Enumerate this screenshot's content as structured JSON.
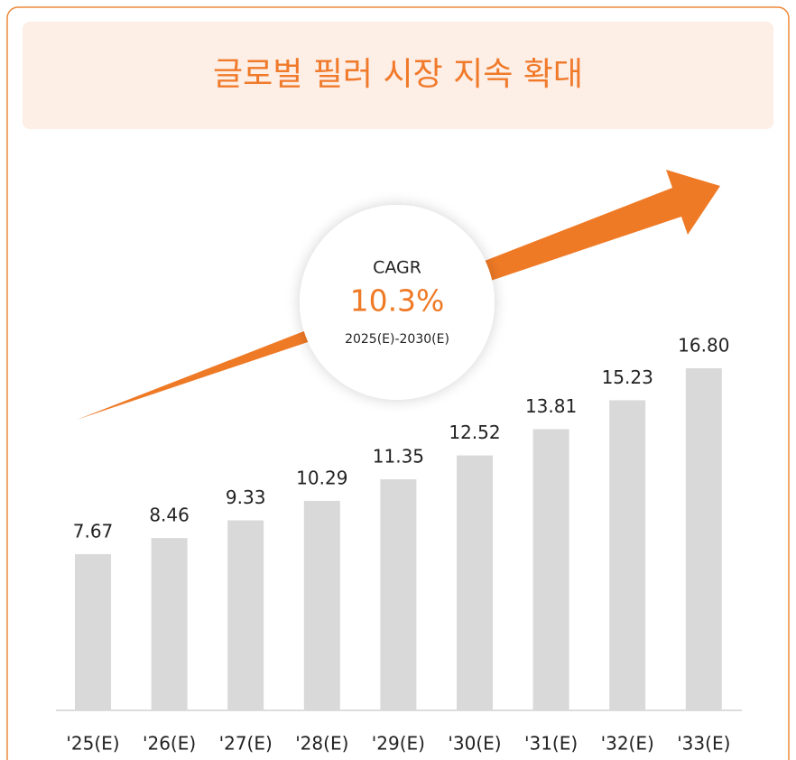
{
  "chart_data": {
    "type": "bar",
    "title": "글로벌 필러 시장 지속 확대",
    "annotation": {
      "label": "CAGR",
      "value": "10.3%",
      "period": "2025(E)-2030(E)"
    },
    "categories": [
      "'25(E)",
      "'26(E)",
      "'27(E)",
      "'28(E)",
      "'29(E)",
      "'30(E)",
      "'31(E)",
      "'32(E)",
      "'33(E)"
    ],
    "values": [
      7.67,
      8.46,
      9.33,
      10.29,
      11.35,
      12.52,
      13.81,
      15.23,
      16.8
    ],
    "value_labels": [
      "7.67",
      "8.46",
      "9.33",
      "10.29",
      "11.35",
      "12.52",
      "13.81",
      "15.23",
      "16.80"
    ],
    "color": "#d9d9d9"
  }
}
